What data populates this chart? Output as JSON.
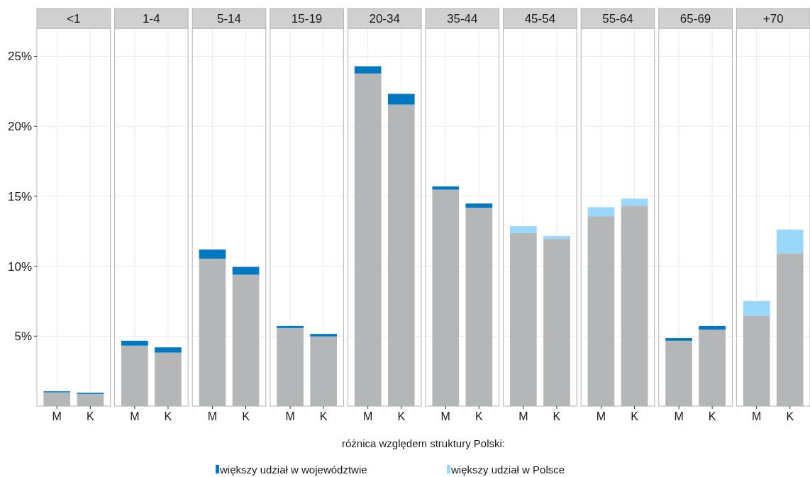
{
  "chart_data": [
    {
      "type": "bar",
      "title": "<1",
      "categories": [
        "M",
        "K"
      ],
      "stacked": true,
      "ylim": [
        0,
        27
      ],
      "yticks": [
        {
          "value": 5,
          "label": "5%"
        },
        {
          "value": 10,
          "label": "10%"
        },
        {
          "value": 15,
          "label": "15%"
        },
        {
          "value": 20,
          "label": "20%"
        },
        {
          "value": 25,
          "label": "25%"
        }
      ],
      "grid": true,
      "legend": "bottom",
      "legend_title": "różnica względem struktury Polski:",
      "series": [
        {
          "color": "#b5b6b8",
          "values": [
            0.98,
            0.87
          ]
        },
        {
          "name": "większy udział w województwie",
          "color": "#0077be",
          "values": [
            0.08,
            0.09
          ]
        },
        {
          "name": "większy udział w Polsce",
          "color": "#99d8fa",
          "values": [
            null,
            null
          ]
        }
      ]
    },
    {
      "type": "bar",
      "title": "1-4",
      "categories": [
        "M",
        "K"
      ],
      "stacked": true,
      "ylim": [
        0,
        27
      ],
      "yticks": [
        5,
        10,
        15,
        20,
        25
      ],
      "grid": true,
      "tick_labels": "x",
      "series": [
        {
          "color": "#b5b6b8",
          "values": [
            4.32,
            3.82
          ]
        },
        {
          "color": "#0077be",
          "values": [
            0.35,
            0.38
          ]
        }
      ]
    },
    {
      "type": "bar",
      "title": "5-14",
      "categories": [
        "M",
        "K"
      ],
      "stacked": true,
      "ylim": [
        0,
        27
      ],
      "yticks": [
        5,
        10,
        15,
        20,
        25
      ],
      "grid": true,
      "tick_labels": "x",
      "series": [
        {
          "color": "#b5b6b8",
          "values": [
            10.54,
            9.39
          ]
        },
        {
          "color": "#0077be",
          "values": [
            0.65,
            0.56
          ]
        }
      ]
    },
    {
      "type": "bar",
      "title": "15-19",
      "categories": [
        "M",
        "K"
      ],
      "stacked": true,
      "ylim": [
        0,
        27
      ],
      "yticks": [
        5,
        10,
        15,
        20,
        25
      ],
      "grid": true,
      "tick_labels": "x",
      "series": [
        {
          "color": "#b5b6b8",
          "values": [
            5.58,
            4.98
          ]
        },
        {
          "color": "#0077be",
          "values": [
            0.15,
            0.18
          ]
        }
      ]
    },
    {
      "type": "bar",
      "title": "20-34",
      "categories": [
        "M",
        "K"
      ],
      "stacked": true,
      "ylim": [
        0,
        27
      ],
      "yticks": [
        5,
        10,
        15,
        20,
        25
      ],
      "grid": true,
      "tick_labels": "x",
      "series": [
        {
          "color": "#b5b6b8",
          "values": [
            23.77,
            21.55
          ]
        },
        {
          "color": "#0077be",
          "values": [
            0.52,
            0.77
          ]
        }
      ]
    },
    {
      "type": "bar",
      "title": "35-44",
      "categories": [
        "M",
        "K"
      ],
      "stacked": true,
      "ylim": [
        0,
        27
      ],
      "yticks": [
        5,
        10,
        15,
        20,
        25
      ],
      "grid": true,
      "tick_labels": "x",
      "series": [
        {
          "color": "#b5b6b8",
          "values": [
            15.47,
            14.17
          ]
        },
        {
          "color": "#0077be",
          "values": [
            0.23,
            0.31
          ]
        }
      ]
    },
    {
      "type": "bar",
      "title": "45-54",
      "categories": [
        "M",
        "K"
      ],
      "stacked": true,
      "ylim": [
        0,
        27
      ],
      "yticks": [
        5,
        10,
        15,
        20,
        25
      ],
      "grid": true,
      "tick_labels": "x",
      "series": [
        {
          "color": "#b5b6b8",
          "values": [
            12.37,
            11.95
          ]
        },
        {
          "color": "#99d8fa",
          "values": [
            0.49,
            0.21
          ]
        }
      ]
    },
    {
      "type": "bar",
      "title": "55-64",
      "categories": [
        "M",
        "K"
      ],
      "stacked": true,
      "ylim": [
        0,
        27
      ],
      "yticks": [
        5,
        10,
        15,
        20,
        25
      ],
      "grid": true,
      "tick_labels": "x",
      "series": [
        {
          "color": "#b5b6b8",
          "values": [
            13.57,
            14.32
          ]
        },
        {
          "color": "#99d8fa",
          "values": [
            0.65,
            0.51
          ]
        }
      ]
    },
    {
      "type": "bar",
      "title": "65-69",
      "categories": [
        "M",
        "K"
      ],
      "stacked": true,
      "ylim": [
        0,
        27
      ],
      "yticks": [
        5,
        10,
        15,
        20,
        25
      ],
      "grid": true,
      "tick_labels": "x",
      "series": [
        {
          "color": "#b5b6b8",
          "values": [
            4.67,
            5.47
          ]
        },
        {
          "color": "#0077be",
          "values": [
            0.19,
            0.26
          ]
        }
      ]
    },
    {
      "type": "bar",
      "title": "+70",
      "categories": [
        "M",
        "K"
      ],
      "stacked": true,
      "ylim": [
        0,
        27
      ],
      "yticks": [
        5,
        10,
        15,
        20,
        25
      ],
      "grid": true,
      "tick_labels": "x",
      "series": [
        {
          "color": "#b5b6b8",
          "values": [
            6.46,
            10.93
          ]
        },
        {
          "color": "#99d8fa",
          "values": [
            1.05,
            1.69
          ]
        }
      ]
    }
  ]
}
